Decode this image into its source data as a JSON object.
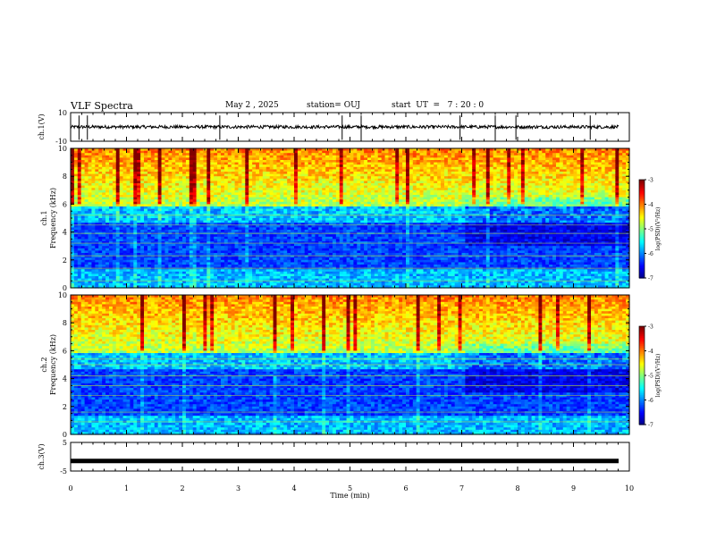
{
  "header": {
    "title": "VLF Spectra",
    "date": "May 2 , 2025",
    "station": "station= OUJ",
    "start": "start  UT  =   7 : 20 : 0"
  },
  "chart_data": [
    {
      "type": "line",
      "name": "ch1-waveform",
      "ylabel": "ch.1(V)",
      "ylim": [
        -10,
        10
      ],
      "yticks": [
        "10",
        "-10"
      ],
      "xlim": [
        0,
        10
      ],
      "baseline": 0,
      "spike_times_min": [
        0.15,
        0.3,
        2.67,
        4.86,
        5.2,
        6.97,
        7.6,
        7.97,
        9.3
      ]
    },
    {
      "type": "heatmap",
      "name": "ch1-spectrogram",
      "ylabel": "ch.1\nFrequency (kHz)",
      "ylim": [
        0,
        10
      ],
      "yticks": [
        "0",
        "2",
        "4",
        "6",
        "8",
        "10"
      ],
      "xlim": [
        0,
        10
      ],
      "colorbar": {
        "label": "log(PSD)(V²/Hz)",
        "range": [
          -7,
          -3
        ],
        "ticks": [
          "-3",
          "-4",
          "-5",
          "-6",
          "-7"
        ]
      }
    },
    {
      "type": "heatmap",
      "name": "ch2-spectrogram",
      "ylabel": "ch.2\nFrequency (kHz)",
      "ylim": [
        0,
        10
      ],
      "yticks": [
        "0",
        "2",
        "4",
        "6",
        "8",
        "10"
      ],
      "xlim": [
        0,
        10
      ],
      "colorbar": {
        "label": "log(PSD)(V²/Hz)",
        "range": [
          -7,
          -3
        ],
        "ticks": [
          "-3",
          "-4",
          "-5",
          "-6",
          "-7"
        ]
      }
    },
    {
      "type": "line",
      "name": "ch3-waveform",
      "ylabel": "ch.3(V)",
      "ylim": [
        -5,
        5
      ],
      "yticks": [
        "5",
        "-5"
      ],
      "xlim": [
        0,
        10
      ],
      "baseline": -1.5
    }
  ],
  "xaxis": {
    "label": "Time (min)",
    "ticks": [
      "0",
      "1",
      "2",
      "3",
      "4",
      "5",
      "6",
      "7",
      "8",
      "9",
      "10"
    ]
  }
}
